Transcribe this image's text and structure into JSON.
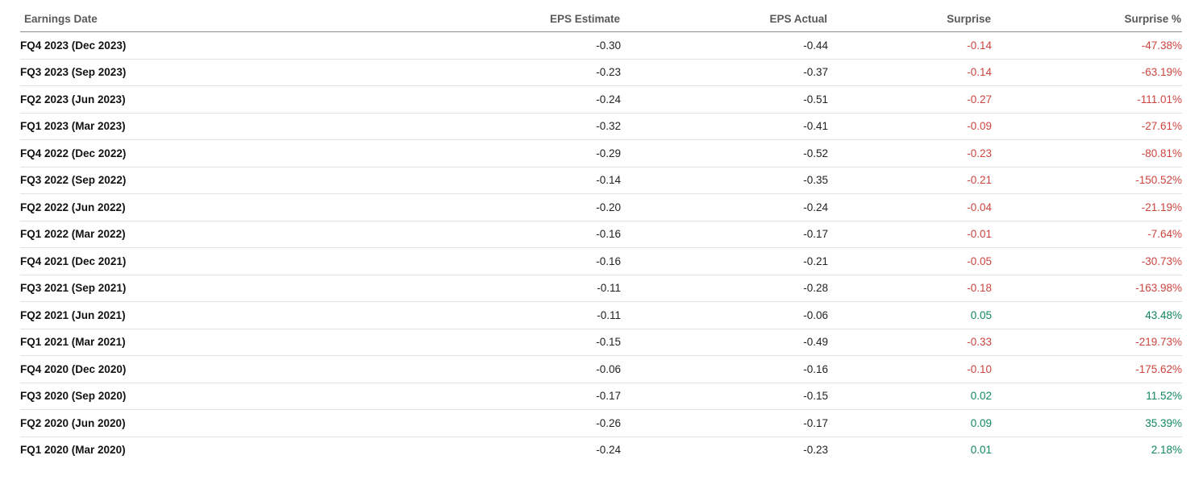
{
  "table": {
    "columns": [
      {
        "label": "Earnings Date",
        "align": "left"
      },
      {
        "label": "EPS Estimate",
        "align": "right"
      },
      {
        "label": "EPS Actual",
        "align": "right"
      },
      {
        "label": "Surprise",
        "align": "right"
      },
      {
        "label": "Surprise %",
        "align": "right"
      }
    ],
    "rows": [
      {
        "date": "FQ4 2023 (Dec 2023)",
        "estimate": "-0.30",
        "actual": "-0.44",
        "surprise": "-0.14",
        "surprise_pct": "-47.38%",
        "sentiment": "negative"
      },
      {
        "date": "FQ3 2023 (Sep 2023)",
        "estimate": "-0.23",
        "actual": "-0.37",
        "surprise": "-0.14",
        "surprise_pct": "-63.19%",
        "sentiment": "negative"
      },
      {
        "date": "FQ2 2023 (Jun 2023)",
        "estimate": "-0.24",
        "actual": "-0.51",
        "surprise": "-0.27",
        "surprise_pct": "-111.01%",
        "sentiment": "negative"
      },
      {
        "date": "FQ1 2023 (Mar 2023)",
        "estimate": "-0.32",
        "actual": "-0.41",
        "surprise": "-0.09",
        "surprise_pct": "-27.61%",
        "sentiment": "negative"
      },
      {
        "date": "FQ4 2022 (Dec 2022)",
        "estimate": "-0.29",
        "actual": "-0.52",
        "surprise": "-0.23",
        "surprise_pct": "-80.81%",
        "sentiment": "negative"
      },
      {
        "date": "FQ3 2022 (Sep 2022)",
        "estimate": "-0.14",
        "actual": "-0.35",
        "surprise": "-0.21",
        "surprise_pct": "-150.52%",
        "sentiment": "negative"
      },
      {
        "date": "FQ2 2022 (Jun 2022)",
        "estimate": "-0.20",
        "actual": "-0.24",
        "surprise": "-0.04",
        "surprise_pct": "-21.19%",
        "sentiment": "negative"
      },
      {
        "date": "FQ1 2022 (Mar 2022)",
        "estimate": "-0.16",
        "actual": "-0.17",
        "surprise": "-0.01",
        "surprise_pct": "-7.64%",
        "sentiment": "negative"
      },
      {
        "date": "FQ4 2021 (Dec 2021)",
        "estimate": "-0.16",
        "actual": "-0.21",
        "surprise": "-0.05",
        "surprise_pct": "-30.73%",
        "sentiment": "negative"
      },
      {
        "date": "FQ3 2021 (Sep 2021)",
        "estimate": "-0.11",
        "actual": "-0.28",
        "surprise": "-0.18",
        "surprise_pct": "-163.98%",
        "sentiment": "negative"
      },
      {
        "date": "FQ2 2021 (Jun 2021)",
        "estimate": "-0.11",
        "actual": "-0.06",
        "surprise": "0.05",
        "surprise_pct": "43.48%",
        "sentiment": "positive"
      },
      {
        "date": "FQ1 2021 (Mar 2021)",
        "estimate": "-0.15",
        "actual": "-0.49",
        "surprise": "-0.33",
        "surprise_pct": "-219.73%",
        "sentiment": "negative"
      },
      {
        "date": "FQ4 2020 (Dec 2020)",
        "estimate": "-0.06",
        "actual": "-0.16",
        "surprise": "-0.10",
        "surprise_pct": "-175.62%",
        "sentiment": "negative"
      },
      {
        "date": "FQ3 2020 (Sep 2020)",
        "estimate": "-0.17",
        "actual": "-0.15",
        "surprise": "0.02",
        "surprise_pct": "11.52%",
        "sentiment": "positive"
      },
      {
        "date": "FQ2 2020 (Jun 2020)",
        "estimate": "-0.26",
        "actual": "-0.17",
        "surprise": "0.09",
        "surprise_pct": "35.39%",
        "sentiment": "positive"
      },
      {
        "date": "FQ1 2020 (Mar 2020)",
        "estimate": "-0.24",
        "actual": "-0.23",
        "surprise": "0.01",
        "surprise_pct": "2.18%",
        "sentiment": "positive"
      }
    ],
    "colors": {
      "positive": "#118661",
      "negative": "#cc443e",
      "header_text": "#595959",
      "header_border": "#8f8f8f",
      "row_border": "#e2e2e2"
    }
  }
}
